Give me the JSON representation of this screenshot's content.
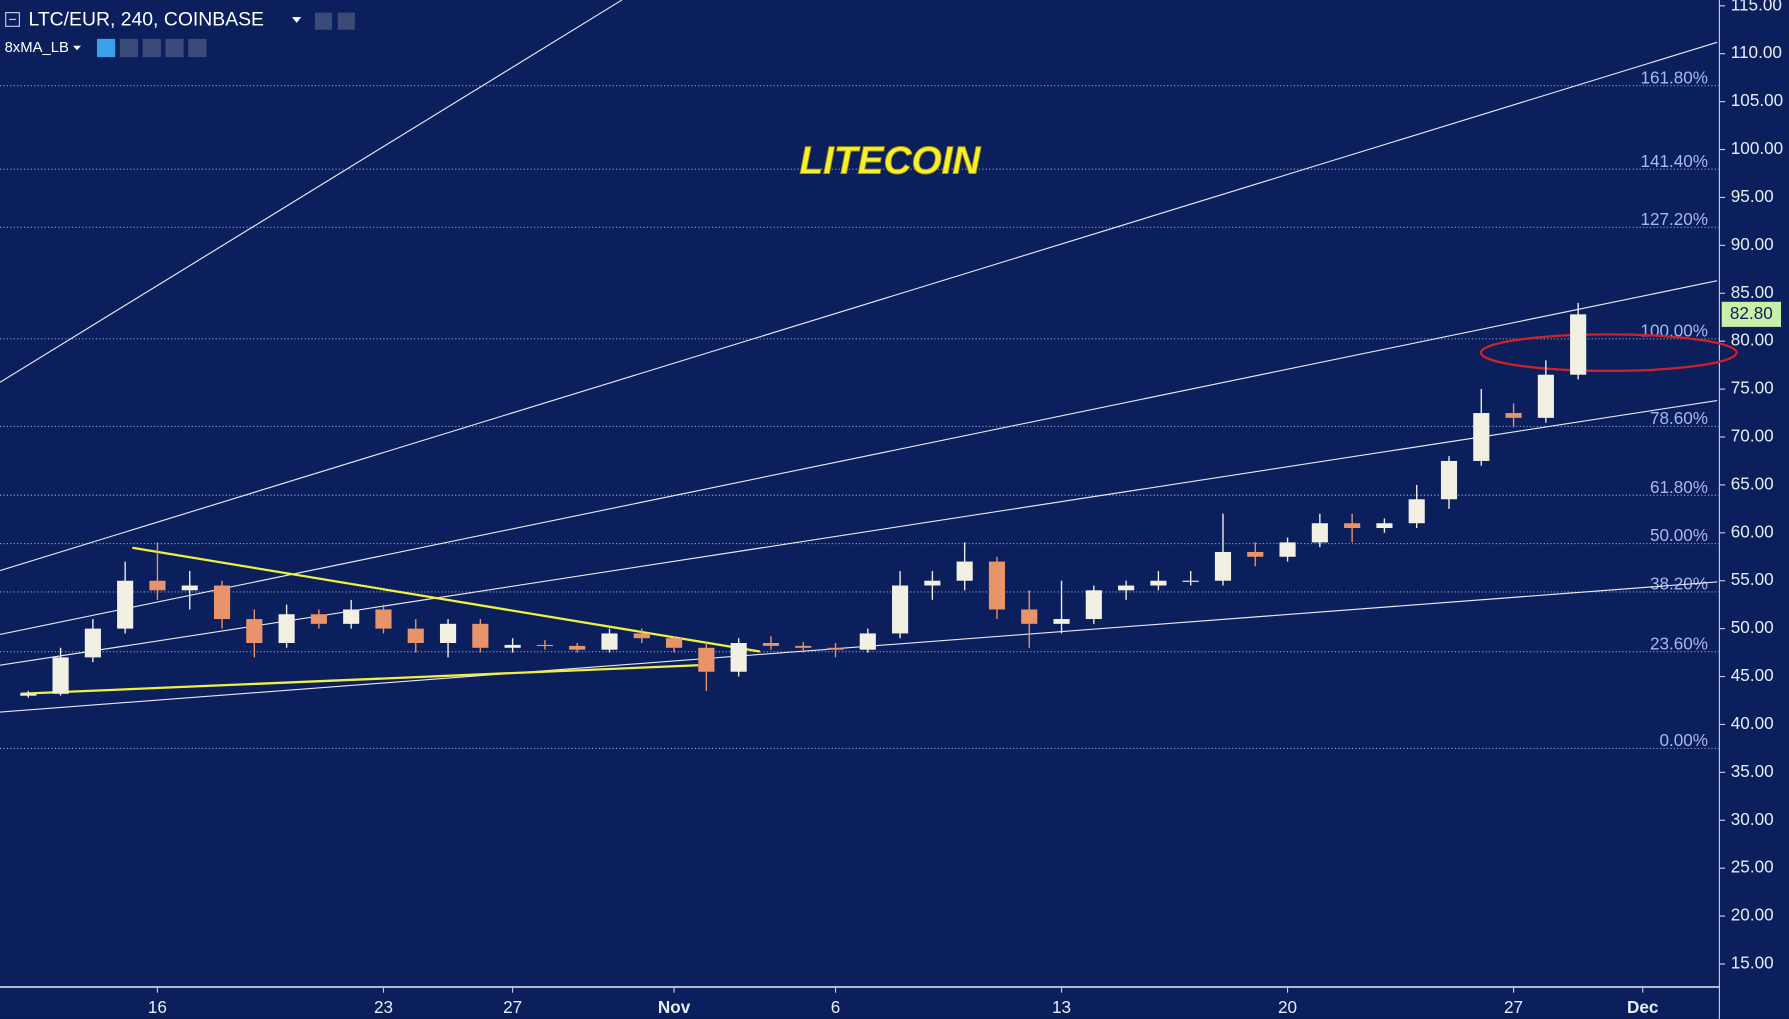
{
  "header": {
    "symbol": "LTC/EUR, 240, COINBASE",
    "indicator": "8xMA_LB"
  },
  "chart_data": {
    "type": "candlestick",
    "title": "LITECOIN",
    "categories": [
      null,
      null,
      null,
      null,
      "16",
      null,
      null,
      null,
      null,
      null,
      null,
      "23",
      null,
      null,
      null,
      "27",
      null,
      null,
      null,
      null,
      "Nov",
      null,
      null,
      null,
      null,
      "6",
      null,
      null,
      null,
      null,
      null,
      null,
      "13",
      null,
      null,
      null,
      null,
      null,
      null,
      "20",
      null,
      null,
      null,
      null,
      null,
      null,
      "27",
      null,
      null,
      null,
      "Dec"
    ],
    "open": [
      43,
      43.2,
      47,
      50,
      55,
      54,
      54.5,
      51,
      48.5,
      51.5,
      50.5,
      52,
      50,
      48.5,
      50.5,
      48,
      48.3,
      48.2,
      47.8,
      49.5,
      49,
      48,
      45.5,
      48.5,
      48.2,
      48,
      47.8,
      49.5,
      54.5,
      55,
      57,
      52,
      50.5,
      51,
      54,
      54.5,
      55,
      55,
      58,
      57.5,
      59,
      61,
      60.5,
      61,
      63.5,
      67.5,
      72.5,
      72,
      76.5,
      null,
      null
    ],
    "high": [
      43.5,
      48,
      51,
      57,
      59,
      56,
      55,
      52,
      52.5,
      52,
      53,
      52.5,
      51,
      51,
      51,
      49,
      48.8,
      48.5,
      50,
      50,
      49.2,
      48.5,
      49,
      49.2,
      48.6,
      48.5,
      50,
      56,
      56,
      59,
      57.5,
      54,
      55,
      54.5,
      55,
      56,
      56,
      62,
      59,
      59.5,
      62,
      62,
      61.5,
      65,
      68,
      75,
      73.5,
      78,
      84,
      null,
      null
    ],
    "low": [
      42.8,
      43,
      46.5,
      49.5,
      53,
      52,
      50,
      47,
      48,
      50,
      50,
      49.5,
      47.5,
      47,
      47.5,
      47.5,
      47.8,
      47.5,
      47.5,
      48.5,
      47.5,
      43.5,
      45,
      47.8,
      47.5,
      47,
      47.5,
      49,
      53,
      54,
      51,
      48,
      49.5,
      50.5,
      53,
      54,
      54.5,
      54.5,
      56.5,
      57,
      58.5,
      59,
      60,
      60.5,
      62.5,
      67,
      71,
      71.5,
      76,
      null,
      null
    ],
    "close": [
      43.2,
      47,
      50,
      55,
      54,
      54.5,
      51,
      48.5,
      51.5,
      50.5,
      52,
      50,
      48.5,
      50.5,
      48,
      48.3,
      48.2,
      47.8,
      49.5,
      49,
      48,
      45.5,
      48.5,
      48.2,
      48,
      47.8,
      49.5,
      54.5,
      55,
      57,
      52,
      50.5,
      51,
      54,
      54.5,
      55,
      55,
      58,
      57.5,
      59,
      61,
      60.5,
      61,
      63.5,
      67.5,
      72.5,
      72,
      76.5,
      82.8,
      null,
      null
    ],
    "up_color": "#f2f0e2",
    "down_color": "#e8936a",
    "last_price": {
      "value": 82.8,
      "label": "82.80"
    },
    "ylim": [
      12.6,
      115.6
    ],
    "yticks": [
      {
        "value": 15,
        "label": "15.00"
      },
      {
        "value": 20,
        "label": "20.00"
      },
      {
        "value": 25,
        "label": "25.00"
      },
      {
        "value": 30,
        "label": "30.00"
      },
      {
        "value": 35,
        "label": "35.00"
      },
      {
        "value": 40,
        "label": "40.00"
      },
      {
        "value": 45,
        "label": "45.00"
      },
      {
        "value": 50,
        "label": "50.00"
      },
      {
        "value": 55,
        "label": "55.00"
      },
      {
        "value": 60,
        "label": "60.00"
      },
      {
        "value": 65,
        "label": "65.00"
      },
      {
        "value": 70,
        "label": "70.00"
      },
      {
        "value": 75,
        "label": "75.00"
      },
      {
        "value": 80,
        "label": "80.00"
      },
      {
        "value": 85,
        "label": "85.00"
      },
      {
        "value": 90,
        "label": "90.00"
      },
      {
        "value": 95,
        "label": "95.00"
      },
      {
        "value": 100,
        "label": "100.00"
      },
      {
        "value": 105,
        "label": "105.00"
      },
      {
        "value": 110,
        "label": "110.00"
      },
      {
        "value": 115,
        "label": "115.00"
      }
    ],
    "fib_levels": [
      {
        "label": "161.80%",
        "price": 106.67
      },
      {
        "label": "141.40%",
        "price": 97.95
      },
      {
        "label": "127.20%",
        "price": 91.88
      },
      {
        "label": "100.00%",
        "price": 80.25
      },
      {
        "label": "78.60%",
        "price": 71.1
      },
      {
        "label": "61.80%",
        "price": 63.92
      },
      {
        "label": "50.00%",
        "price": 58.88
      },
      {
        "label": "38.20%",
        "price": 53.83
      },
      {
        "label": "23.60%",
        "price": 47.59
      },
      {
        "label": "0.00%",
        "price": 37.5
      }
    ]
  }
}
